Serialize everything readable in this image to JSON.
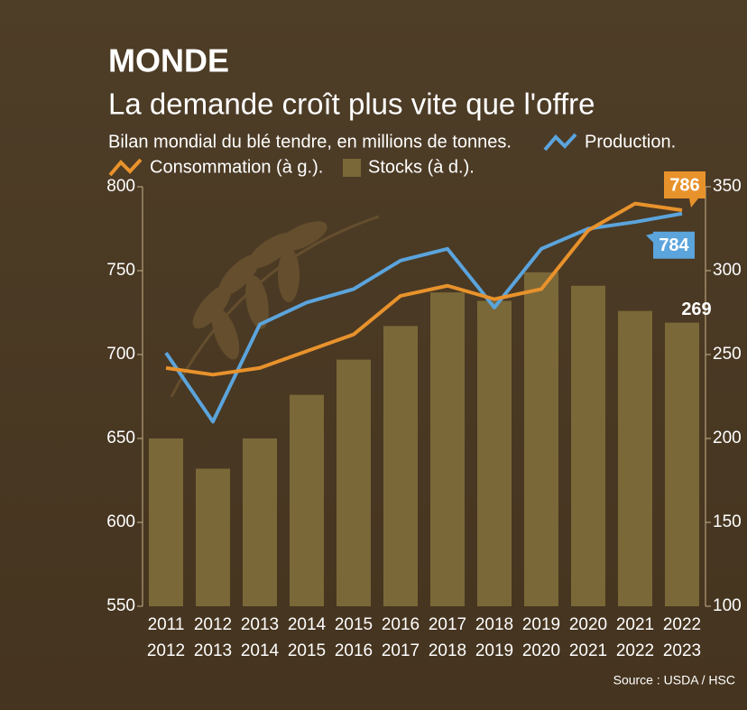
{
  "chart_data": {
    "type": "combo",
    "title": "MONDE",
    "subtitle": "La demande croît plus vite que l'offre",
    "caption": "Bilan mondial du blé tendre, en millions de tonnes.",
    "source": "Source : USDA / HSC",
    "categories": [
      [
        "2011",
        "2012"
      ],
      [
        "2012",
        "2013"
      ],
      [
        "2013",
        "2014"
      ],
      [
        "2014",
        "2015"
      ],
      [
        "2015",
        "2016"
      ],
      [
        "2016",
        "2017"
      ],
      [
        "2017",
        "2018"
      ],
      [
        "2018",
        "2019"
      ],
      [
        "2019",
        "2020"
      ],
      [
        "2020",
        "2021"
      ],
      [
        "2021",
        "2022"
      ],
      [
        "2022",
        "2023"
      ]
    ],
    "series": [
      {
        "name": "Stocks (à d.).",
        "type": "bar",
        "axis": "y2",
        "color": "#7a6838",
        "values": [
          200,
          182,
          200,
          226,
          247,
          267,
          287,
          282,
          299,
          291,
          276,
          269
        ]
      },
      {
        "name": "Production.",
        "type": "line",
        "color": "#5ba4dc",
        "values": [
          701,
          660,
          718,
          731,
          739,
          756,
          763,
          728,
          763,
          775,
          779,
          784
        ]
      },
      {
        "name": "Consommation (à g.).",
        "type": "line",
        "color": "#e8922c",
        "values": [
          692,
          688,
          692,
          702,
          712,
          735,
          741,
          733,
          739,
          774,
          790,
          786
        ]
      }
    ],
    "ylim": [
      550,
      800
    ],
    "yticks": [
      550,
      600,
      650,
      700,
      750,
      800
    ],
    "y2lim": [
      100,
      350
    ],
    "y2ticks": [
      100,
      150,
      200,
      250,
      300,
      350
    ]
  }
}
